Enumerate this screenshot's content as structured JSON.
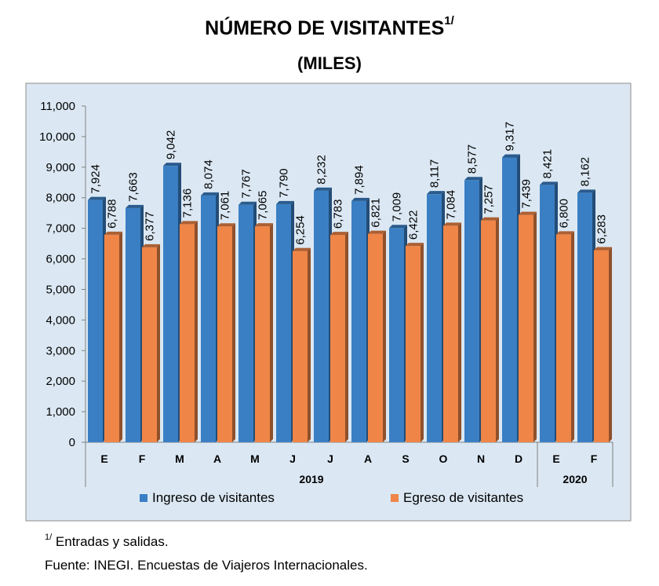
{
  "chart_data": {
    "type": "bar",
    "title": "NÚMERO DE VISITANTES",
    "title_superscript": "1/",
    "subtitle": "(MILES)",
    "categories": [
      "E",
      "F",
      "M",
      "A",
      "M",
      "J",
      "J",
      "A",
      "S",
      "O",
      "N",
      "D",
      "E",
      "F"
    ],
    "groups": [
      {
        "label": "2019",
        "count": 12
      },
      {
        "label": "2020",
        "count": 2
      }
    ],
    "series": [
      {
        "name": "Ingreso de visitantes",
        "color": "#3a7fc4",
        "values": [
          7924,
          7663,
          9042,
          8074,
          7767,
          7790,
          8232,
          7894,
          7009,
          8117,
          8577,
          9317,
          8421,
          8162
        ],
        "labels": [
          "7,924",
          "7,663",
          "9,042",
          "8,074",
          "7,767",
          "7,790",
          "8,232",
          "7,894",
          "7,009",
          "8,117",
          "8,577",
          "9,317",
          "8,421",
          "8,162"
        ]
      },
      {
        "name": "Egreso de visitantes",
        "color": "#ef8547",
        "values": [
          6788,
          6377,
          7136,
          7061,
          7065,
          6254,
          6783,
          6821,
          6422,
          7084,
          7257,
          7439,
          6800,
          6283
        ],
        "labels": [
          "6,788",
          "6,377",
          "7,136",
          "7,061",
          "7,065",
          "6,254",
          "6,783",
          "6,821",
          "6,422",
          "7,084",
          "7,257",
          "7,439",
          "6,800",
          "6,283"
        ]
      }
    ],
    "ylim": [
      0,
      11000
    ],
    "yticks": [
      0,
      1000,
      2000,
      3000,
      4000,
      5000,
      6000,
      7000,
      8000,
      9000,
      10000,
      11000
    ],
    "ytick_labels": [
      "0",
      "1,000",
      "2,000",
      "3,000",
      "4,000",
      "5,000",
      "6,000",
      "7,000",
      "8,000",
      "9,000",
      "10,000",
      "11,000"
    ],
    "legend_position": "bottom",
    "plot_background": "#dbe8f3"
  },
  "notes": {
    "footnote_mark": "1/",
    "footnote_text": " Entradas y salidas.",
    "source": "Fuente: INEGI. Encuestas de Viajeros Internacionales."
  }
}
